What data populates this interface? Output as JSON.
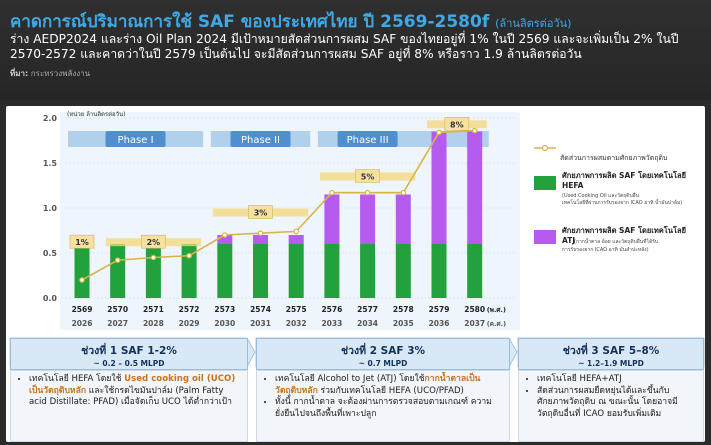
{
  "header": {
    "title": "คาดการณ์ปริมาณการใช้ SAF ของประเทศไทย ปี 2569-2580f",
    "title_unit": "(ล้านลิตรต่อวัน)",
    "subtitle": "ร่าง AEDP2024 และร่าง Oil Plan 2024 มีเป้าหมายสัดส่วนการผสม SAF ของไทยอยู่ที่ 1% ในปี 2569 และจะเพิ่มเป็น 2% ในปี 2570-2572 และคาดว่าในปี 2579 เป็นต้นไป จะมีสัดส่วนการผสม SAF อยู่ที่ 8% หรือราว 1.9 ล้านลิตรต่อวัน",
    "source_label": "ที่มา:",
    "source": "กระทรวงพลังงาน"
  },
  "chart_data": {
    "type": "bar",
    "unit_label": "(หน่วย ล้านลิตรต่อวัน)",
    "y_ticks": [
      "2.0",
      "1.5",
      "1.0",
      "0.5",
      "0.0"
    ],
    "ylim": [
      0,
      2.0
    ],
    "x_be": [
      "2569",
      "2570",
      "2571",
      "2572",
      "2573",
      "2574",
      "2575",
      "2576",
      "2577",
      "2578",
      "2579",
      "2580"
    ],
    "x_ce": [
      "2026",
      "2027",
      "2028",
      "2029",
      "2030",
      "2031",
      "2032",
      "2033",
      "2034",
      "2035",
      "2036",
      "2037"
    ],
    "x_be_unit": "(พ.ศ.)",
    "x_ce_unit": "(ค.ศ.)",
    "series": [
      {
        "name": "ศักยภาพการผลิต SAF โดยเทคโนโลยี HEFA",
        "color": "#22a23c",
        "values": [
          0.6,
          0.6,
          0.6,
          0.6,
          0.6,
          0.6,
          0.6,
          0.6,
          0.6,
          0.6,
          0.6,
          0.6
        ]
      },
      {
        "name": "ศักยภาพการผลิต SAF โดยเทคโนโลยี ATJ",
        "color": "#b55bf0",
        "values": [
          0,
          0,
          0,
          0,
          0.1,
          0.1,
          0.1,
          0.55,
          0.55,
          0.55,
          1.25,
          1.25
        ]
      }
    ],
    "line": {
      "name": "สัดส่วนการผสมตามศักยภาพวัตถุดิบ",
      "color": "#d9b44a",
      "values": [
        0.2,
        0.42,
        0.45,
        0.47,
        0.7,
        0.72,
        0.74,
        1.17,
        1.17,
        1.17,
        1.84,
        1.86
      ]
    },
    "phases": [
      "Phase I",
      "Phase II",
      "Phase III"
    ],
    "pct_labels": [
      "1%",
      "2%",
      "3%",
      "5%",
      "8%"
    ]
  },
  "legend": {
    "line": "สัดส่วนการผสมตามศักยภาพวัตถุดิบ",
    "hefa_title": "ศักยภาพการผลิต SAF โดยเทคโนโลยี HEFA",
    "hefa_note": "(Used Cooking Oil และวัตถุดิบอื่น เทคโนโลยีที่ผ่านการรับรองจาก ICAO อาทิ น้ำมันปาล์ม)",
    "atj_title": "ศักยภาพการผลิต SAF โดยเทคโนโลยี ATJ",
    "atj_note": "(กากน้ำตาล อ้อย และวัตถุดิบอื่นที่ได้รับการรับรองจาก ICAO อาทิ มันสำปะหลัง)"
  },
  "phases": [
    {
      "title": "ช่วงที่ 1 SAF 1-2%",
      "sub": "~ 0.2 – 0.5 MLPD",
      "bullet": [
        "เทคโนโลยี HEFA โดยใช้ ",
        "Used cooking oil (UCO) เป็นวัตถุดิบหลัก",
        " และใช้กรดไขมันปาล์ม (Palm Fatty acid Distillate: PFAD) เมื่อจัดเก็บ UCO ได้ต่ำกว่าเป้า"
      ]
    },
    {
      "title": "ช่วงที่ 2 SAF 3%",
      "sub": "~ 0.7 MLPD",
      "b1": [
        "เทคโนโลยี Alcohol to Jet (ATJ) โดยใช้",
        "กากน้ำตาลเป็นวัตถุดิบหลัก",
        " ร่วมกับเทคโนโลยี HEFA (UCO/PFAD)"
      ],
      "b2": "ทั้งนี้ กากน้ำตาล จะต้องผ่านการตรวจสอบตามเกณฑ์ ความยั่งยืนไปจนถึงพื้นที่เพาะปลูก"
    },
    {
      "title": "ช่วงที่ 3 SAF 5–8%",
      "sub": "~ 1.2–1.9 MLPD",
      "b1": "เทคโนโลยี HEFA+ATJ",
      "b2": "สัดส่วนการผสมยืดหยุ่นได้และขึ้นกับศักยภาพวัตถุดิบ ณ ขณะนั้น โดยอาจมีวัตถุดิบอื่นที่ ICAO ยอมรับเพิ่มเติม"
    }
  ]
}
